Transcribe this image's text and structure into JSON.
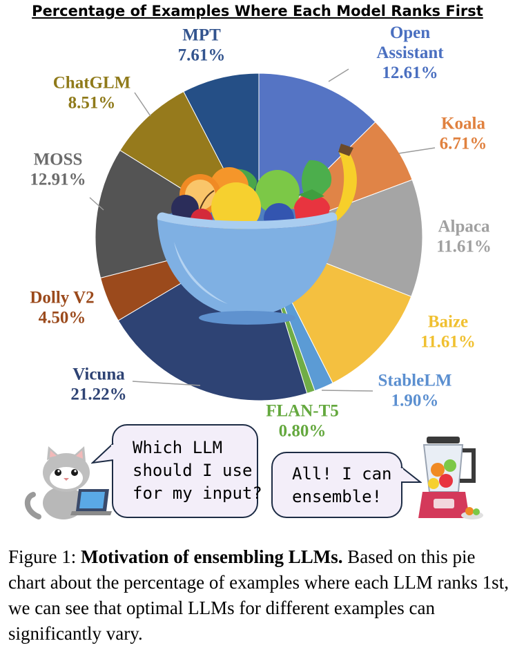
{
  "chart_data": {
    "type": "pie",
    "title": "Percentage of Examples Where Each Model Ranks First",
    "slices": [
      {
        "label": [
          "Open",
          "Assistant"
        ],
        "value": 12.61,
        "display": "12.61%",
        "color": "#5574c4",
        "label_color": "#4a6fc0"
      },
      {
        "label": [
          "Koala"
        ],
        "value": 6.71,
        "display": "6.71%",
        "color": "#e08447",
        "label_color": "#e0813f"
      },
      {
        "label": [
          "Alpaca"
        ],
        "value": 11.61,
        "display": "11.61%",
        "color": "#a5a5a5",
        "label_color": "#a0a0a0"
      },
      {
        "label": [
          "Baize"
        ],
        "value": 11.61,
        "display": "11.61%",
        "color": "#f4c040",
        "label_color": "#f0c030"
      },
      {
        "label": [
          "StableLM"
        ],
        "value": 1.9,
        "display": "1.90%",
        "color": "#5b9bd5",
        "label_color": "#5b8fd0"
      },
      {
        "label": [
          "FLAN-T5"
        ],
        "value": 0.8,
        "display": "0.80%",
        "color": "#70ad47",
        "label_color": "#64a83e"
      },
      {
        "label": [
          "Vicuna"
        ],
        "value": 21.22,
        "display": "21.22%",
        "color": "#2e4374",
        "label_color": "#2e4374"
      },
      {
        "label": [
          "Dolly V2"
        ],
        "value": 4.5,
        "display": "4.50%",
        "color": "#9b4a1c",
        "label_color": "#9b4a1c"
      },
      {
        "label": [
          "MOSS"
        ],
        "value": 12.91,
        "display": "12.91%",
        "color": "#545454",
        "label_color": "#6b6b6b"
      },
      {
        "label": [
          "ChatGLM"
        ],
        "value": 8.51,
        "display": "8.51%",
        "color": "#967a1c",
        "label_color": "#8f7a1a"
      },
      {
        "label": [
          "MPT"
        ],
        "value": 7.61,
        "display": "7.61%",
        "color": "#254f86",
        "label_color": "#33548e"
      }
    ]
  },
  "bubbles": {
    "cat": [
      "Which LLM",
      "should I use",
      "for my input?"
    ],
    "blender": [
      "All! I can",
      "ensemble!"
    ]
  },
  "caption": {
    "prefix": "Figure 1: ",
    "bold": "Motivation of ensembling LLMs.",
    "text": " Based on this pie chart about the percentage of examples where each LLM ranks 1st, we can see that optimal LLMs for different examples can significantly vary."
  }
}
